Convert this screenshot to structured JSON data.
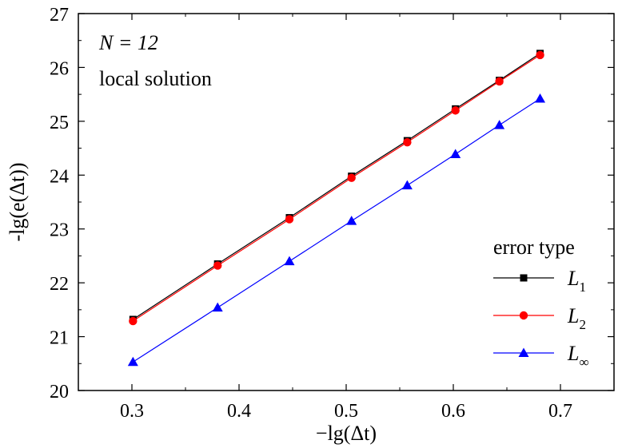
{
  "chart_data": {
    "type": "line",
    "title": "",
    "xlabel": "−lg(Δt)",
    "ylabel": "-lg(e(Δt))",
    "xlim": [
      0.25,
      0.75
    ],
    "ylim": [
      20,
      27
    ],
    "xticks": [
      0.3,
      0.4,
      0.5,
      0.6,
      0.7
    ],
    "yticks": [
      20,
      21,
      22,
      23,
      24,
      25,
      26,
      27
    ],
    "xtick_labels": [
      "0.3",
      "0.4",
      "0.5",
      "0.6",
      "0.7"
    ],
    "ytick_labels": [
      "20",
      "21",
      "22",
      "23",
      "24",
      "25",
      "26",
      "27"
    ],
    "grid": false,
    "legend_position": "bottom-right",
    "legend_title": "error type",
    "annotations": [
      "N = 12",
      "local solution"
    ],
    "x": [
      0.301,
      0.38,
      0.447,
      0.505,
      0.557,
      0.602,
      0.643,
      0.681
    ],
    "series": [
      {
        "name": "L1",
        "name_main": "L",
        "name_sub": "1",
        "color": "#000000",
        "marker": "square",
        "values": [
          21.32,
          22.35,
          23.21,
          23.98,
          24.64,
          25.23,
          25.76,
          26.26
        ]
      },
      {
        "name": "L2",
        "name_main": "L",
        "name_sub": "2",
        "color": "#ff0000",
        "marker": "circle",
        "values": [
          21.29,
          22.32,
          23.18,
          23.95,
          24.61,
          25.2,
          25.74,
          26.23
        ]
      },
      {
        "name": "L∞",
        "name_main": "L",
        "name_sub": "∞",
        "color": "#0000ff",
        "marker": "triangle",
        "values": [
          20.53,
          21.54,
          22.4,
          23.15,
          23.81,
          24.39,
          24.93,
          25.42
        ]
      }
    ]
  }
}
